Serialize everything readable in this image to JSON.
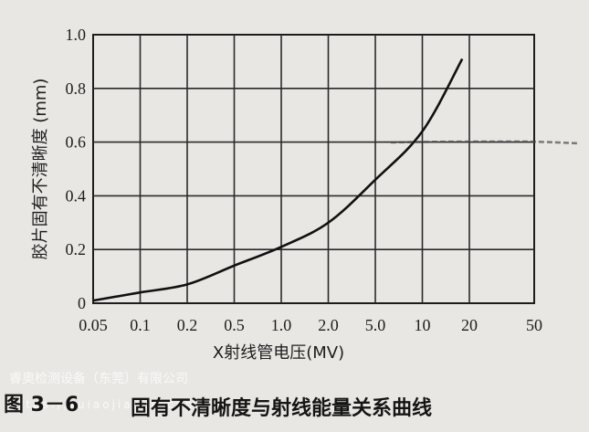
{
  "chart_data": {
    "type": "line",
    "title": "",
    "xlabel": "X射线管电压(MV)",
    "ylabel": "胶片固有不清晰度 (mm)",
    "x_scale": "log",
    "x_ticks": [
      "0.05",
      "0.1",
      "0.2",
      "0.5",
      "1.0",
      "2.0",
      "5.0",
      "10",
      "20",
      "50"
    ],
    "y_ticks": [
      "0",
      "0.2",
      "0.4",
      "0.6",
      "0.8",
      "1.0"
    ],
    "ylim": [
      0,
      1.0
    ],
    "grid": true,
    "series": [
      {
        "x": [
          0.05,
          0.1,
          0.2,
          0.5,
          1.0,
          2.0,
          5.0,
          10,
          18
        ],
        "y": [
          0.01,
          0.04,
          0.07,
          0.14,
          0.21,
          0.3,
          0.46,
          0.64,
          0.91
        ]
      }
    ]
  },
  "caption": {
    "figure_number": "图 3－6",
    "title": "固有不清晰度与射线能量关系曲线"
  },
  "watermark": {
    "company": "睿奥检测设备（东莞）有限公司",
    "url": "https://ruiaojiance.com"
  }
}
